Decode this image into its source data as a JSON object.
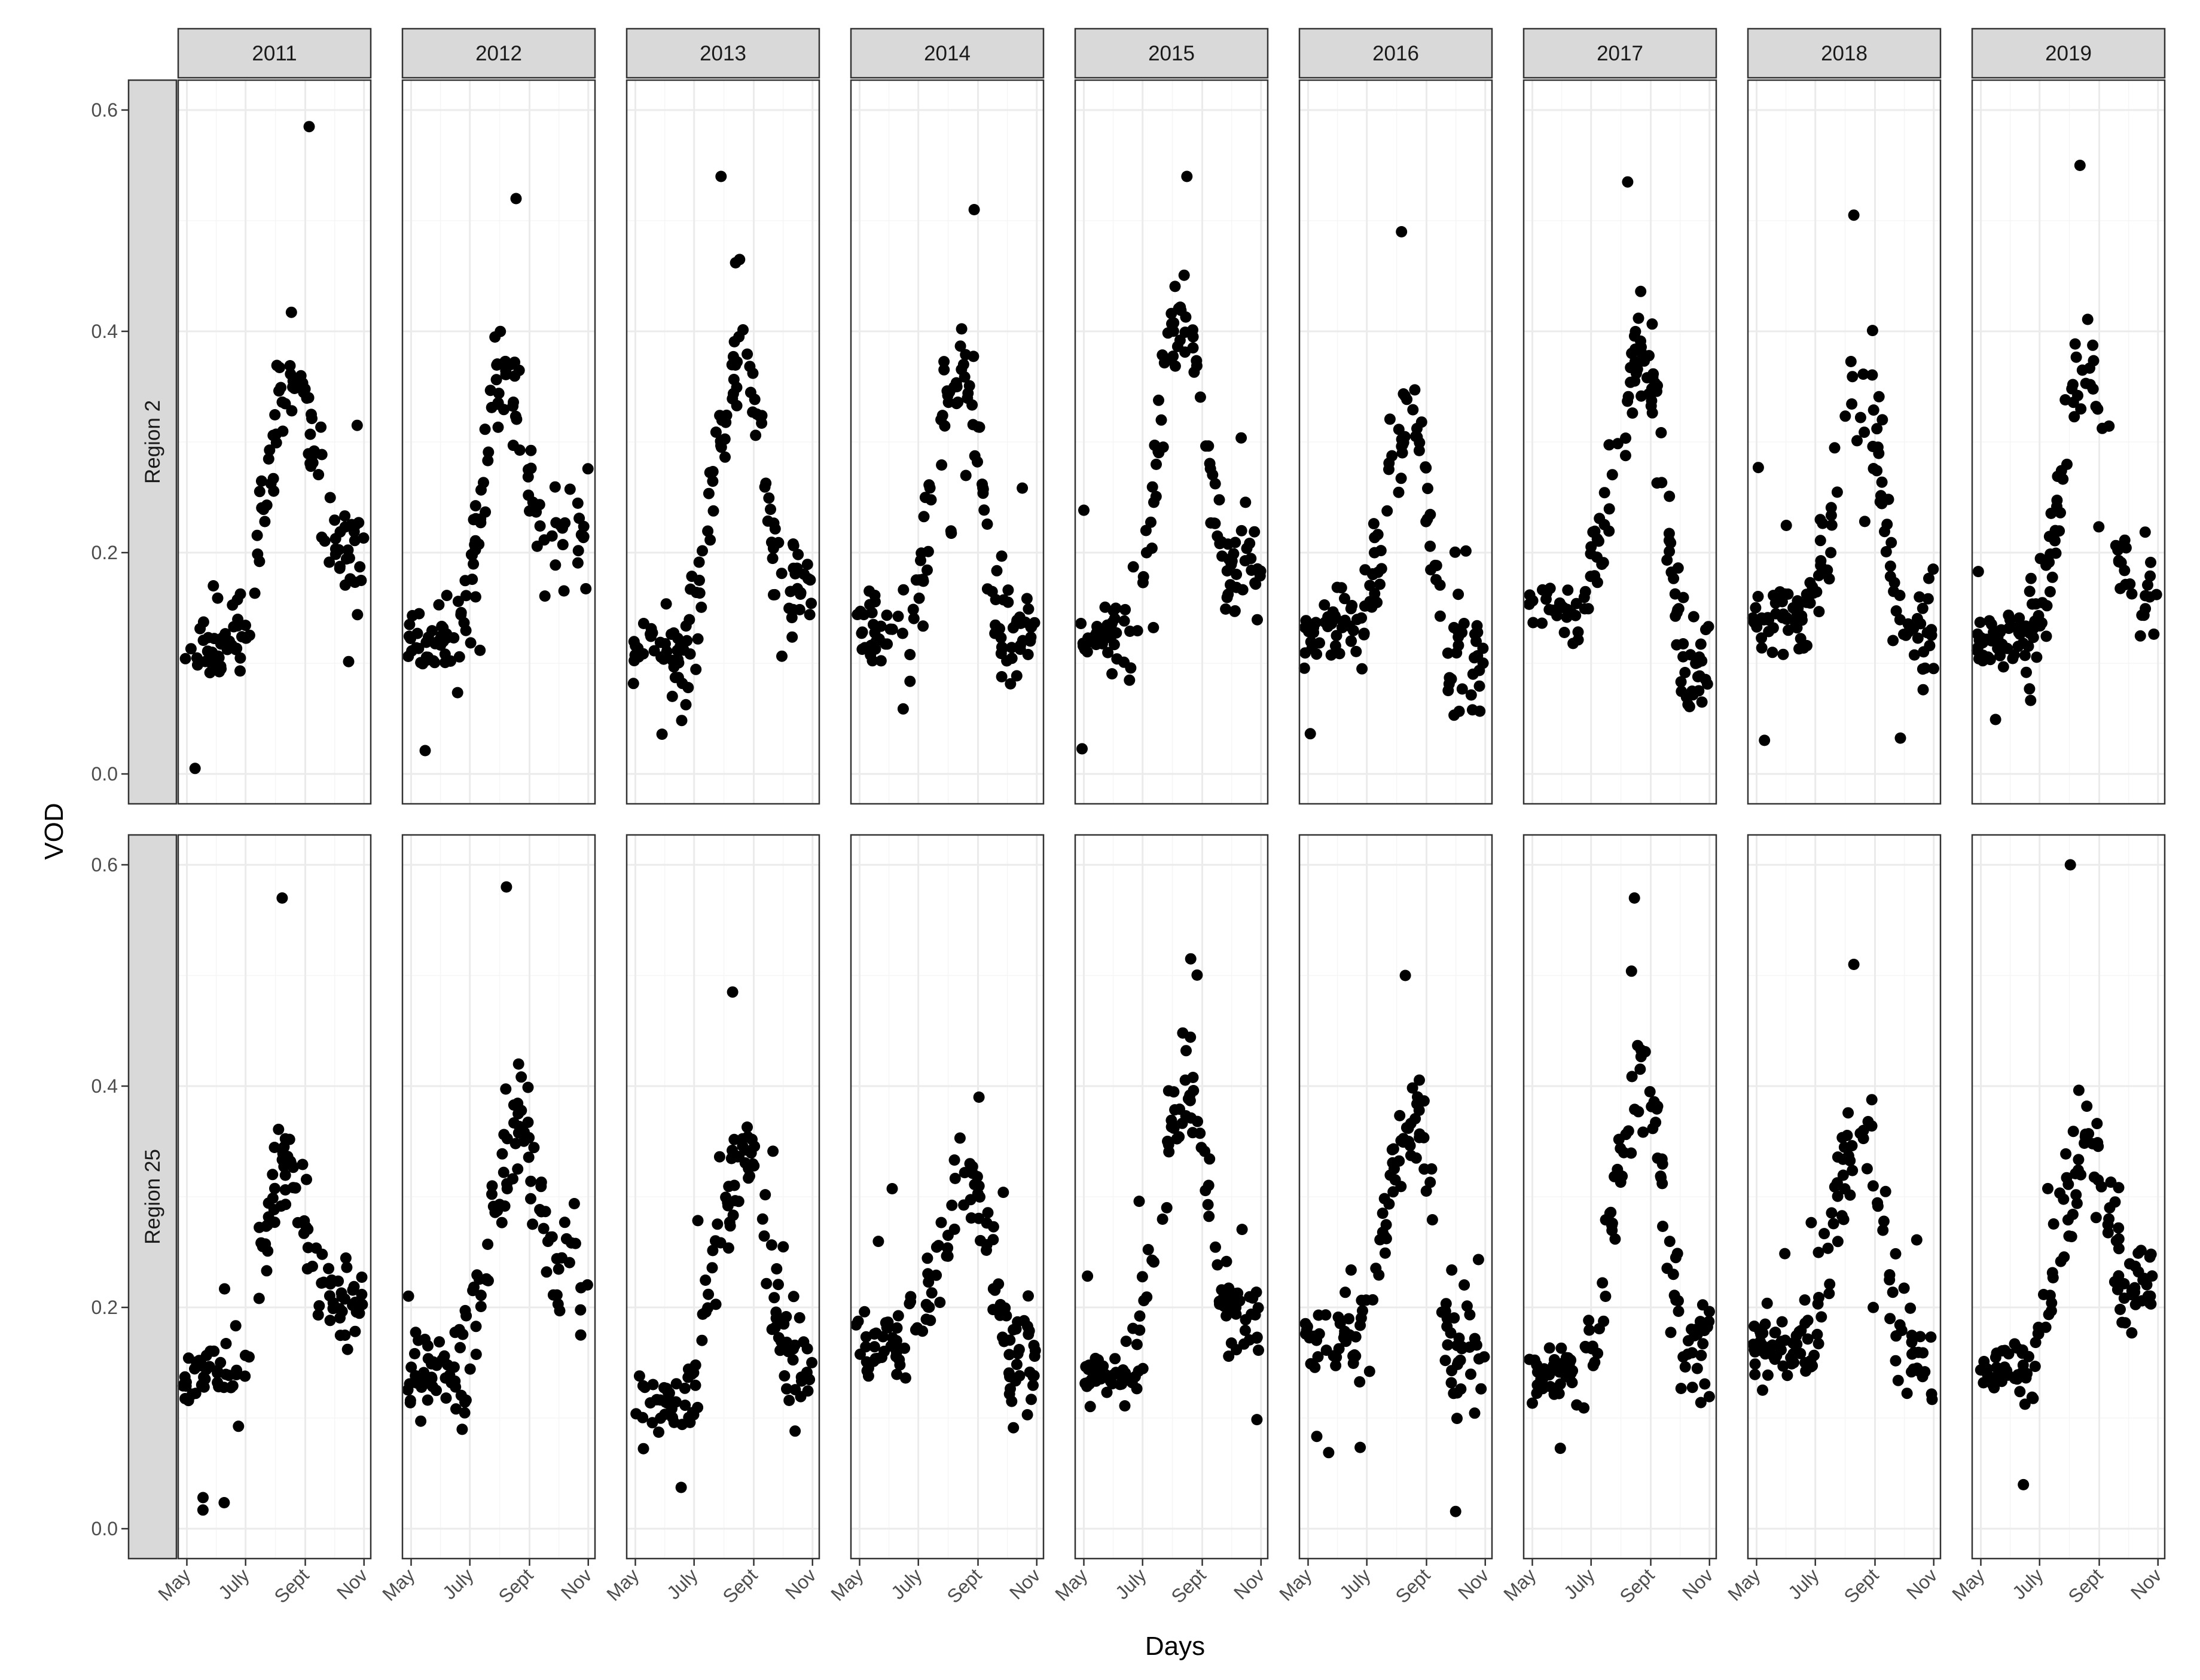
{
  "chart_data": {
    "type": "scatter",
    "title": "",
    "xlabel": "Days",
    "ylabel": "VOD",
    "facet_columns": [
      "2011",
      "2012",
      "2013",
      "2014",
      "2015",
      "2016",
      "2017",
      "2018",
      "2019"
    ],
    "facet_rows": [
      "Region 2",
      "Region 25"
    ],
    "x_ticks": [
      "May",
      "July",
      "Sept",
      "Nov"
    ],
    "x_tick_days": [
      121,
      182,
      244,
      305
    ],
    "x_range_days": [
      112,
      312
    ],
    "y_ticks": [
      "0.0",
      "0.2",
      "0.4",
      "0.6"
    ],
    "y_tick_values": [
      0,
      0.2,
      0.4,
      0.6
    ],
    "ylim": [
      -0.027,
      0.627
    ],
    "grid": true,
    "point_color": "#000000",
    "peaks": {
      "Region 2": [
        {
          "baseline": 0.11,
          "peak": 0.36,
          "peak_day": 232,
          "late": 0.21,
          "max_point": 0.585,
          "max_day": 248
        },
        {
          "baseline": 0.12,
          "peak": 0.37,
          "peak_day": 218,
          "late": 0.22,
          "max_point": 0.52,
          "max_day": 230
        },
        {
          "baseline": 0.11,
          "peak": 0.38,
          "peak_day": 232,
          "late": 0.16,
          "max_point": 0.54,
          "max_day": 210
        },
        {
          "baseline": 0.13,
          "peak": 0.37,
          "peak_day": 228,
          "late": 0.13,
          "max_point": 0.51,
          "max_day": 240
        },
        {
          "baseline": 0.13,
          "peak": 0.42,
          "peak_day": 224,
          "late": 0.19,
          "max_point": 0.54,
          "max_day": 228
        },
        {
          "baseline": 0.13,
          "peak": 0.33,
          "peak_day": 228,
          "late": 0.1,
          "max_point": 0.49,
          "max_day": 218
        },
        {
          "baseline": 0.15,
          "peak": 0.38,
          "peak_day": 236,
          "late": 0.11,
          "max_point": 0.535,
          "max_day": 220
        },
        {
          "baseline": 0.14,
          "peak": 0.34,
          "peak_day": 232,
          "late": 0.13,
          "max_point": 0.505,
          "max_day": 222
        },
        {
          "baseline": 0.12,
          "peak": 0.36,
          "peak_day": 232,
          "late": 0.17,
          "max_point": 0.55,
          "max_day": 224
        }
      ],
      "Region 25": [
        {
          "baseline": 0.14,
          "peak": 0.33,
          "peak_day": 225,
          "late": 0.2,
          "max_point": 0.57,
          "max_day": 220
        },
        {
          "baseline": 0.14,
          "peak": 0.36,
          "peak_day": 232,
          "late": 0.24,
          "max_point": 0.58,
          "max_day": 220
        },
        {
          "baseline": 0.12,
          "peak": 0.34,
          "peak_day": 236,
          "late": 0.15,
          "max_point": 0.485,
          "max_day": 222
        },
        {
          "baseline": 0.17,
          "peak": 0.32,
          "peak_day": 236,
          "late": 0.16,
          "max_point": 0.39,
          "max_day": 245
        },
        {
          "baseline": 0.14,
          "peak": 0.41,
          "peak_day": 228,
          "late": 0.19,
          "max_point": 0.515,
          "max_day": 232
        },
        {
          "baseline": 0.17,
          "peak": 0.37,
          "peak_day": 232,
          "late": 0.15,
          "max_point": 0.5,
          "max_day": 222
        },
        {
          "baseline": 0.14,
          "peak": 0.4,
          "peak_day": 236,
          "late": 0.17,
          "max_point": 0.57,
          "max_day": 227
        },
        {
          "baseline": 0.16,
          "peak": 0.36,
          "peak_day": 230,
          "late": 0.16,
          "max_point": 0.51,
          "max_day": 222
        },
        {
          "baseline": 0.14,
          "peak": 0.35,
          "peak_day": 234,
          "late": 0.21,
          "max_point": 0.6,
          "max_day": 214
        }
      ]
    }
  }
}
